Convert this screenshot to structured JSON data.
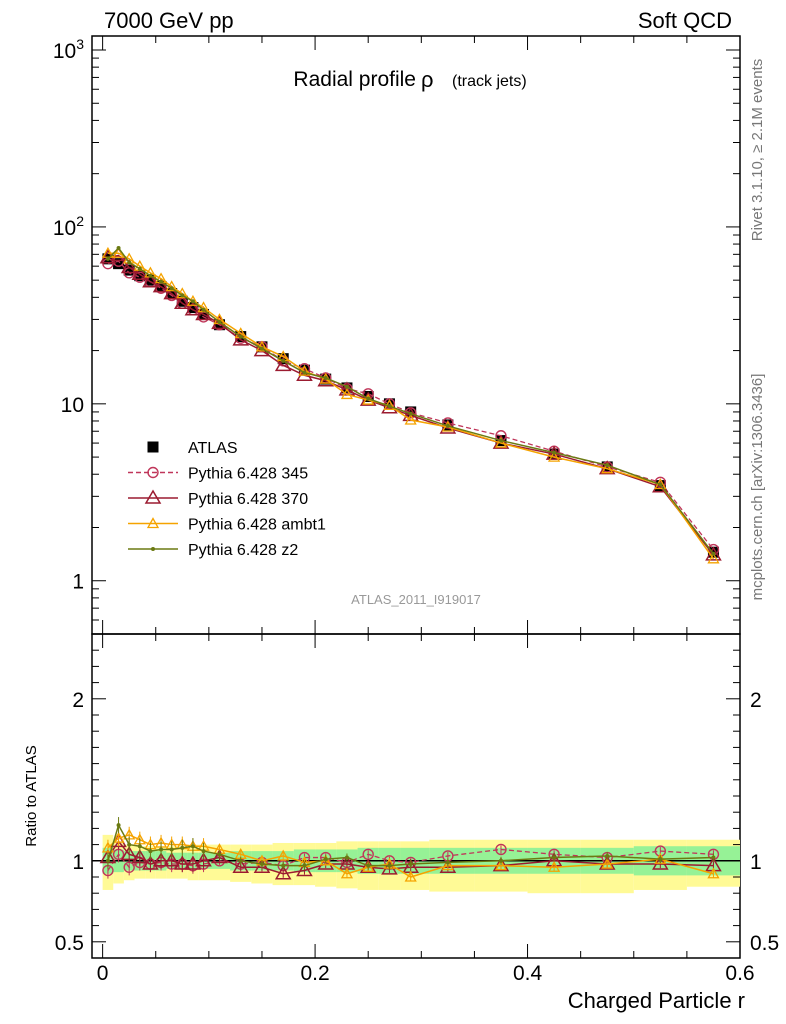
{
  "header": {
    "left": "7000 GeV pp",
    "right": "Soft QCD"
  },
  "title": {
    "main": "Radial profile",
    "greek": "ρ",
    "sub": "(track jets)"
  },
  "side_labels": {
    "rivet": "Rivet 3.1.10, ≥ 2.1M events",
    "mcplots": "mcplots.cern.ch [arXiv:1306.3436]"
  },
  "analysis_id": "ATLAS_2011_I919017",
  "xlabel": "Charged Particle r",
  "ratio_ylabel": "Ratio to ATLAS",
  "colors": {
    "atlas": "#000000",
    "p345": "#c0365a",
    "p370": "#9b1b30",
    "ambt1": "#f5a300",
    "z2": "#6b7a12",
    "band_yellow": "#fffa96",
    "band_green": "#96f296"
  },
  "chart_data": [
    {
      "type": "line",
      "panel": "main",
      "yscale": "log",
      "xlim": [
        -0.01,
        0.6
      ],
      "ylim": [
        0.5,
        1200
      ],
      "y_tick_labels": [
        "1",
        "10",
        "10²",
        "10³"
      ],
      "x": [
        0.005,
        0.015,
        0.025,
        0.035,
        0.045,
        0.055,
        0.065,
        0.075,
        0.085,
        0.095,
        0.11,
        0.13,
        0.15,
        0.17,
        0.19,
        0.21,
        0.23,
        0.25,
        0.27,
        0.29,
        0.325,
        0.375,
        0.425,
        0.475,
        0.525,
        0.575
      ],
      "series": [
        {
          "name": "ATLAS",
          "style": "square",
          "values": [
            66,
            62,
            57,
            53,
            50,
            46,
            42,
            38,
            35,
            32,
            28,
            24,
            21,
            18,
            15.5,
            13.8,
            12.3,
            11.0,
            10.0,
            9.0,
            7.6,
            6.2,
            5.2,
            4.4,
            3.45,
            1.45
          ]
        },
        {
          "name": "Pythia 6.428 345",
          "style": "circle-dashed",
          "values": [
            62,
            64,
            55,
            52,
            49,
            45,
            41,
            37,
            34,
            31,
            28,
            23.5,
            21,
            17.5,
            15.8,
            14.0,
            12.2,
            11.4,
            10.0,
            8.9,
            7.8,
            6.6,
            5.4,
            4.4,
            3.6,
            1.5
          ]
        },
        {
          "name": "Pythia 6.428 370",
          "style": "triangle",
          "values": [
            67,
            69,
            59,
            54,
            49,
            46,
            42,
            37,
            34,
            32,
            28.5,
            23,
            20,
            16.5,
            14.5,
            13.5,
            12.0,
            10.5,
            9.5,
            8.6,
            7.3,
            6.0,
            5.2,
            4.3,
            3.4,
            1.4
          ]
        },
        {
          "name": "Pythia 6.428 ambt1",
          "style": "triangle-small",
          "values": [
            71,
            71,
            66,
            60,
            55,
            51,
            46,
            42,
            38,
            35,
            30,
            25,
            21,
            18.5,
            15.3,
            13.8,
            11.3,
            10.5,
            9.8,
            8.1,
            7.4,
            6.0,
            5.0,
            4.3,
            3.5,
            1.33
          ]
        },
        {
          "name": "Pythia 6.428 z2",
          "style": "dot",
          "values": [
            66,
            76,
            63,
            58,
            53,
            49,
            45,
            41,
            38,
            34,
            29,
            24,
            20.5,
            17.5,
            15.0,
            14.0,
            12.5,
            10.7,
            9.7,
            8.8,
            7.5,
            6.2,
            5.3,
            4.5,
            3.5,
            1.42
          ]
        }
      ],
      "legend": [
        "ATLAS",
        "Pythia 6.428 345",
        "Pythia 6.428 370",
        "Pythia 6.428 ambt1",
        "Pythia 6.428 z2"
      ],
      "legend_position": "lower-left"
    },
    {
      "type": "line",
      "panel": "ratio",
      "xlim": [
        -0.01,
        0.6
      ],
      "ylim": [
        0.4,
        2.4
      ],
      "x_tick_labels": [
        "0",
        "0.2",
        "0.4",
        "0.6"
      ],
      "y_tick_labels": [
        "0.5",
        "1",
        "2"
      ],
      "x": [
        0.005,
        0.015,
        0.025,
        0.035,
        0.045,
        0.055,
        0.065,
        0.075,
        0.085,
        0.095,
        0.11,
        0.13,
        0.15,
        0.17,
        0.19,
        0.21,
        0.23,
        0.25,
        0.27,
        0.29,
        0.325,
        0.375,
        0.425,
        0.475,
        0.525,
        0.575
      ],
      "band_green": {
        "lo": [
          0.92,
          0.93,
          0.94,
          0.94,
          0.94,
          0.94,
          0.95,
          0.95,
          0.95,
          0.95,
          0.95,
          0.94,
          0.94,
          0.94,
          0.93,
          0.93,
          0.93,
          0.92,
          0.92,
          0.92,
          0.92,
          0.92,
          0.92,
          0.92,
          0.91,
          0.91
        ],
        "hi": [
          1.08,
          1.07,
          1.06,
          1.06,
          1.06,
          1.06,
          1.05,
          1.05,
          1.05,
          1.05,
          1.05,
          1.06,
          1.06,
          1.06,
          1.07,
          1.07,
          1.07,
          1.08,
          1.08,
          1.08,
          1.08,
          1.08,
          1.08,
          1.08,
          1.09,
          1.09
        ]
      },
      "band_yellow": {
        "lo": [
          0.82,
          0.86,
          0.88,
          0.89,
          0.89,
          0.89,
          0.89,
          0.89,
          0.88,
          0.88,
          0.88,
          0.87,
          0.86,
          0.85,
          0.85,
          0.84,
          0.83,
          0.82,
          0.82,
          0.82,
          0.81,
          0.81,
          0.8,
          0.8,
          0.82,
          0.84
        ],
        "hi": [
          1.16,
          1.12,
          1.1,
          1.09,
          1.09,
          1.09,
          1.09,
          1.09,
          1.1,
          1.1,
          1.1,
          1.1,
          1.1,
          1.11,
          1.11,
          1.11,
          1.12,
          1.12,
          1.12,
          1.12,
          1.13,
          1.13,
          1.13,
          1.13,
          1.13,
          1.13
        ]
      },
      "series": [
        {
          "name": "Pythia 6.428 345",
          "values": [
            0.94,
            1.04,
            0.96,
            0.99,
            0.98,
            0.99,
            0.98,
            0.98,
            0.97,
            0.98,
            1.0,
            0.98,
            0.99,
            0.97,
            1.02,
            1.02,
            0.99,
            1.04,
            1.0,
            0.99,
            1.03,
            1.07,
            1.04,
            1.02,
            1.06,
            1.04
          ]
        },
        {
          "name": "Pythia 6.428 370",
          "values": [
            1.02,
            1.12,
            1.04,
            1.02,
            0.98,
            1.0,
            1.0,
            0.98,
            0.98,
            1.0,
            1.02,
            0.96,
            0.96,
            0.92,
            0.94,
            0.98,
            0.98,
            0.96,
            0.95,
            0.96,
            0.96,
            0.97,
            1.0,
            0.98,
            0.98,
            0.97
          ]
        },
        {
          "name": "Pythia 6.428 ambt1",
          "values": [
            1.08,
            1.14,
            1.16,
            1.13,
            1.1,
            1.11,
            1.1,
            1.1,
            1.09,
            1.09,
            1.07,
            1.04,
            1.0,
            1.03,
            0.99,
            1.0,
            0.92,
            0.96,
            0.98,
            0.9,
            0.97,
            0.97,
            0.96,
            0.98,
            1.01,
            0.92
          ]
        },
        {
          "name": "Pythia 6.428 z2",
          "values": [
            1.0,
            1.22,
            1.1,
            1.09,
            1.06,
            1.07,
            1.07,
            1.08,
            1.09,
            1.06,
            1.04,
            1.0,
            0.98,
            0.97,
            0.97,
            1.01,
            1.02,
            0.97,
            0.97,
            0.98,
            0.99,
            1.0,
            1.02,
            1.03,
            1.01,
            1.02
          ]
        }
      ]
    }
  ]
}
